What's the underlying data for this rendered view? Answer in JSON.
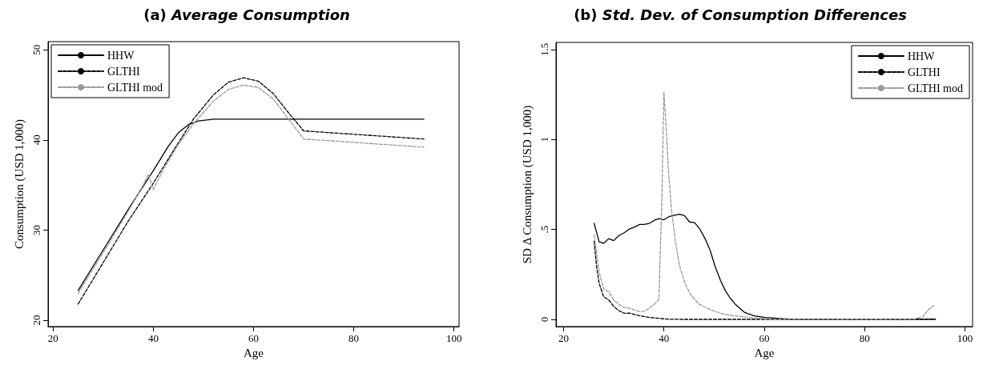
{
  "chart_data": [
    {
      "type": "line",
      "title": "(a) Average Consumption",
      "xlabel": "Age",
      "ylabel": "Consumption (USD 1,000)",
      "xlim": [
        19,
        101
      ],
      "ylim": [
        19.3,
        50.9
      ],
      "xticks": [
        20,
        40,
        60,
        80,
        100
      ],
      "yticks": [
        20,
        30,
        40,
        50
      ],
      "grid": false,
      "legend": "top left",
      "series": [
        {
          "name": "HHW",
          "color": "#000000",
          "line_style": "solid",
          "x": [
            25,
            30,
            35,
            40,
            43,
            45,
            47,
            49,
            52,
            94
          ],
          "values": [
            23.3,
            27.8,
            32.3,
            36.6,
            39.3,
            40.8,
            41.7,
            42.1,
            42.3,
            42.3
          ]
        },
        {
          "name": "GLTHI",
          "color": "#000000",
          "line_style": "dashed",
          "x": [
            25,
            30,
            35,
            40,
            44,
            48,
            52,
            55,
            58,
            61,
            64,
            67,
            70,
            94
          ],
          "values": [
            21.8,
            26.4,
            31.0,
            35.2,
            38.8,
            42.3,
            45.0,
            46.4,
            46.9,
            46.5,
            45.1,
            43.0,
            41.0,
            40.1
          ]
        },
        {
          "name": "GLTHI mod",
          "color": "#999999",
          "line_style": "dashed",
          "x": [
            25,
            30,
            35,
            38,
            39,
            40,
            42,
            45,
            48,
            52,
            55,
            58,
            61,
            64,
            67,
            70,
            94
          ],
          "values": [
            23.0,
            27.5,
            32.1,
            35.0,
            36.2,
            34.5,
            36.7,
            39.5,
            41.8,
            44.3,
            45.6,
            46.1,
            45.8,
            44.5,
            42.3,
            40.1,
            39.2
          ]
        }
      ]
    },
    {
      "type": "line",
      "title": "(b) Std. Dev. of Consumption Differences",
      "xlabel": "Age",
      "ylabel": "SD Δ Consumption (USD 1,000)",
      "xlim": [
        18.5,
        101.5
      ],
      "ylim": [
        -0.04,
        1.54
      ],
      "xticks": [
        20,
        40,
        60,
        80,
        100
      ],
      "yticks": [
        0,
        {
          "value": 0.5,
          "label": ".5"
        },
        1,
        1.5
      ],
      "grid": false,
      "legend": "top right",
      "series": [
        {
          "name": "HHW",
          "color": "#000000",
          "line_style": "solid",
          "x": [
            26.1,
            27.1,
            28,
            29,
            30,
            31,
            32.1,
            33.1,
            34,
            35.2,
            36.1,
            37.1,
            38.1,
            39,
            40,
            41,
            42,
            43.1,
            44.1,
            45.1,
            46.1,
            47.1,
            48.2,
            49.2,
            50.2,
            51.3,
            52.2,
            53.2,
            54.2,
            56.1,
            58,
            60.2,
            63,
            65.7,
            94.1
          ],
          "values": [
            0.534,
            0.431,
            0.423,
            0.449,
            0.438,
            0.465,
            0.482,
            0.502,
            0.511,
            0.528,
            0.528,
            0.534,
            0.551,
            0.56,
            0.554,
            0.571,
            0.578,
            0.585,
            0.577,
            0.542,
            0.538,
            0.505,
            0.449,
            0.385,
            0.295,
            0.215,
            0.162,
            0.118,
            0.085,
            0.038,
            0.02,
            0.011,
            0.005,
            0.0,
            0.002
          ]
        },
        {
          "name": "GLTHI",
          "color": "#000000",
          "line_style": "dashed",
          "x": [
            26.1,
            26.6,
            27.1,
            28,
            29,
            30,
            31,
            32.1,
            33.1,
            35.2,
            37.1,
            39,
            40.9,
            43.7,
            94.1
          ],
          "values": [
            0.434,
            0.292,
            0.2,
            0.126,
            0.108,
            0.072,
            0.049,
            0.034,
            0.035,
            0.02,
            0.011,
            0.006,
            0.001,
            0.0,
            0.0
          ]
        },
        {
          "name": "GLTHI mod",
          "color": "#999999",
          "line_style": "dashed",
          "x": [
            26.1,
            26.6,
            27.1,
            28,
            29,
            30,
            31,
            32.1,
            33.1,
            35.2,
            36.1,
            37.1,
            38.1,
            39,
            39.6,
            40,
            40.4,
            40.9,
            41.5,
            42.3,
            43.1,
            44.2,
            45.3,
            47,
            49.2,
            52,
            54.7,
            58,
            61.3,
            65.7,
            90,
            91.6,
            92.7,
            93.8
          ],
          "values": [
            0.469,
            0.369,
            0.262,
            0.169,
            0.154,
            0.108,
            0.085,
            0.066,
            0.062,
            0.043,
            0.045,
            0.062,
            0.085,
            0.111,
            0.677,
            1.262,
            1.092,
            0.831,
            0.615,
            0.431,
            0.3,
            0.2,
            0.138,
            0.085,
            0.054,
            0.028,
            0.018,
            0.008,
            0.002,
            0.0,
            0.003,
            0.015,
            0.054,
            0.077
          ]
        }
      ]
    }
  ]
}
